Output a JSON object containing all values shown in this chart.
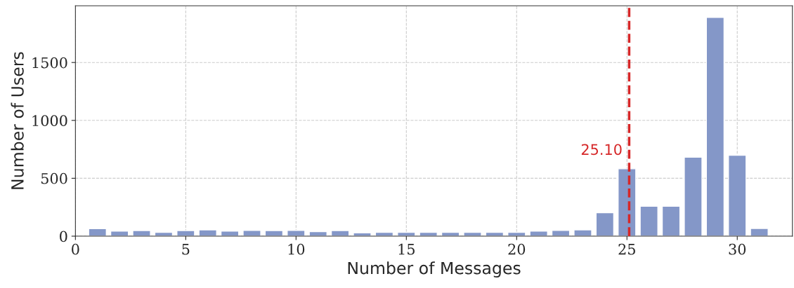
{
  "chart_data": {
    "type": "bar",
    "xlabel": "Number of Messages",
    "ylabel": "Number of Users",
    "x": [
      1,
      2,
      3,
      4,
      5,
      6,
      7,
      8,
      9,
      10,
      11,
      12,
      13,
      14,
      15,
      16,
      17,
      18,
      19,
      20,
      21,
      22,
      23,
      24,
      25,
      26,
      27,
      28,
      29,
      30,
      31
    ],
    "values": [
      65,
      43,
      48,
      33,
      48,
      54,
      43,
      50,
      48,
      50,
      39,
      48,
      28,
      33,
      33,
      33,
      33,
      33,
      33,
      33,
      44,
      49,
      55,
      203,
      582,
      258,
      258,
      682,
      1889,
      699,
      66
    ],
    "color": "#8497c8",
    "xlim": [
      0,
      32.5
    ],
    "xticks": [
      0,
      5,
      10,
      15,
      20,
      25,
      30
    ],
    "ylim": [
      0,
      1990
    ],
    "yticks": [
      0,
      500,
      1000,
      1500
    ],
    "grid": true,
    "ref_lines": [
      {
        "axis": "x",
        "value": 25.1,
        "label": "25.10",
        "color": "#d62728",
        "line_style": "dashed"
      }
    ]
  }
}
